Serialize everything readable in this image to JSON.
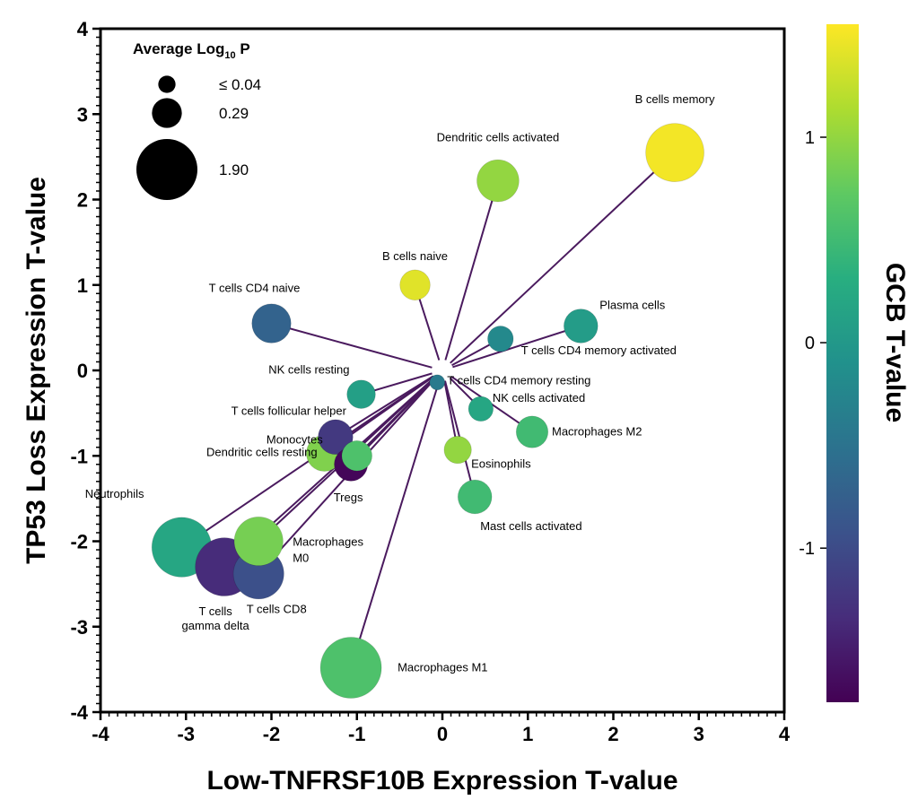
{
  "chart_data": {
    "type": "scatter",
    "xlabel": "Low-TNFRSF10B Expression T-value",
    "ylabel": "TP53 Loss Expression T-value",
    "xlim": [
      -4,
      4
    ],
    "ylim": [
      -4,
      4
    ],
    "xticks": [
      "-4",
      "-3",
      "-2",
      "-1",
      "0",
      "1",
      "2",
      "3",
      "4"
    ],
    "yticks": [
      "-4",
      "-3",
      "-2",
      "-1",
      "0",
      "1",
      "2",
      "3",
      "4"
    ],
    "center": [
      0,
      0
    ],
    "grid": false,
    "size_legend": {
      "title": "Average Log",
      "title_sub": "10",
      "title_suffix": " P",
      "placement": "top-left",
      "entries": [
        {
          "label": "≤  0.04",
          "value": 0.04
        },
        {
          "label": "0.29",
          "value": 0.29
        },
        {
          "label": "1.90",
          "value": 1.9
        }
      ]
    },
    "colorbar": {
      "title": "GCB T-value",
      "range": [
        -1.75,
        1.55
      ],
      "ticks": [
        "1",
        "0",
        "-1"
      ],
      "tick_values": [
        1,
        0,
        -1
      ],
      "colormap": "viridis"
    },
    "points": [
      {
        "name": "B cells memory",
        "x": 2.72,
        "y": 2.55,
        "size": 1.7,
        "color_value": 1.5
      },
      {
        "name": "Dendritic cells activated",
        "x": 0.65,
        "y": 2.22,
        "size": 0.75,
        "color_value": 1.0
      },
      {
        "name": "B cells naive",
        "x": -0.32,
        "y": 1.0,
        "size": 0.3,
        "color_value": 1.4
      },
      {
        "name": "T cells CD4 naive",
        "x": -2.0,
        "y": 0.55,
        "size": 0.62,
        "color_value": -0.7
      },
      {
        "name": "Plasma cells",
        "x": 1.62,
        "y": 0.52,
        "size": 0.42,
        "color_value": 0.05
      },
      {
        "name": "T cells CD4 memory activated",
        "x": 0.68,
        "y": 0.37,
        "size": 0.18,
        "color_value": -0.2
      },
      {
        "name": "NK cells resting",
        "x": -0.95,
        "y": -0.28,
        "size": 0.25,
        "color_value": 0.1
      },
      {
        "name": "T cells CD4 memory resting",
        "x": -0.06,
        "y": -0.14,
        "size": 0.02,
        "color_value": -0.4
      },
      {
        "name": "NK cells activated",
        "x": 0.45,
        "y": -0.45,
        "size": 0.16,
        "color_value": 0.2
      },
      {
        "name": "Macrophages M2",
        "x": 1.05,
        "y": -0.72,
        "size": 0.35,
        "color_value": 0.5
      },
      {
        "name": "T cells follicular helper",
        "x": -1.25,
        "y": -0.78,
        "size": 0.45,
        "color_value": -1.2
      },
      {
        "name": "Monocytes",
        "x": -1.0,
        "y": -1.0,
        "size": 0.3,
        "color_value": 0.6
      },
      {
        "name": "Dendritic cells resting",
        "x": -1.38,
        "y": -0.97,
        "size": 0.5,
        "color_value": 0.9
      },
      {
        "name": "Tregs",
        "x": -1.07,
        "y": -1.1,
        "size": 0.4,
        "color_value": -1.7
      },
      {
        "name": "Eosinophils",
        "x": 0.18,
        "y": -0.93,
        "size": 0.22,
        "color_value": 1.0
      },
      {
        "name": "Mast cells activated",
        "x": 0.38,
        "y": -1.48,
        "size": 0.42,
        "color_value": 0.5
      },
      {
        "name": "Neutrophils",
        "x": -3.05,
        "y": -2.07,
        "size": 1.8,
        "color_value": 0.2
      },
      {
        "name": "Macrophages M0",
        "x": -2.15,
        "y": -2.0,
        "size": 1.1,
        "color_value": 0.85
      },
      {
        "name": "T cells CD8",
        "x": -2.15,
        "y": -2.38,
        "size": 1.2,
        "color_value": -0.95
      },
      {
        "name": "T cells gamma delta",
        "x": -2.55,
        "y": -2.3,
        "size": 1.7,
        "color_value": -1.35
      },
      {
        "name": "Macrophages M1",
        "x": -1.07,
        "y": -3.48,
        "size": 1.9,
        "color_value": 0.6
      }
    ]
  }
}
